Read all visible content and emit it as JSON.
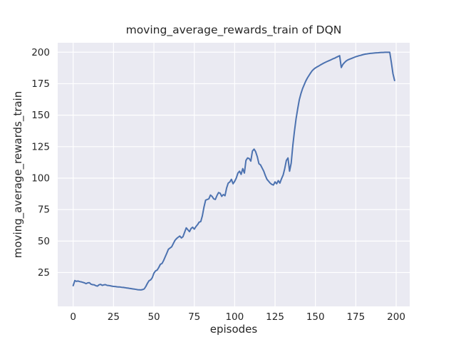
{
  "figure": {
    "background_color": "#ffffff"
  },
  "chart_data": {
    "type": "line",
    "title": "moving_average_rewards_train of DQN",
    "xlabel": "episodes",
    "ylabel": "moving_average_rewards_train",
    "x_ticks": [
      0,
      25,
      50,
      75,
      100,
      125,
      150,
      175,
      200
    ],
    "y_ticks": [
      25,
      50,
      75,
      100,
      125,
      150,
      175,
      200
    ],
    "xlim": [
      -9.6,
      208.6
    ],
    "ylim": [
      -1.9,
      207.5
    ],
    "grid": true,
    "legend_visible": false,
    "style": "seaborn-darkgrid",
    "plot_background_color": "#eaeaf2",
    "grid_color": "#ffffff",
    "line_color": "#4c72b0",
    "text_color": "#262626",
    "series": [
      {
        "name": "moving_average_rewards_train",
        "x_start": 0,
        "x_step": 1,
        "values": [
          14.6,
          18.6,
          18.0,
          18.3,
          17.8,
          17.6,
          17.2,
          16.8,
          16.2,
          16.8,
          17.0,
          15.8,
          15.4,
          15.2,
          14.6,
          14.2,
          15.3,
          15.6,
          14.8,
          15.2,
          15.4,
          14.8,
          14.7,
          14.5,
          14.2,
          14.0,
          13.9,
          13.7,
          13.6,
          13.5,
          13.3,
          13.2,
          13.0,
          12.8,
          12.6,
          12.4,
          12.2,
          12.0,
          11.8,
          11.6,
          11.4,
          11.3,
          11.2,
          11.5,
          12.0,
          14.0,
          16.5,
          18.5,
          19.2,
          21.0,
          24.5,
          26.3,
          27.0,
          29.0,
          31.5,
          32.2,
          34.5,
          37.5,
          40.5,
          43.5,
          44.5,
          45.5,
          48.0,
          50.5,
          52.0,
          53.0,
          54.0,
          52.5,
          53.5,
          57.0,
          60.5,
          59.0,
          57.5,
          60.0,
          61.0,
          59.5,
          61.5,
          63.0,
          65.0,
          65.5,
          70.0,
          77.0,
          82.5,
          83.0,
          83.5,
          86.5,
          85.5,
          83.5,
          83.0,
          86.0,
          88.5,
          88.0,
          85.5,
          87.0,
          86.0,
          92.0,
          96.0,
          97.0,
          99.0,
          95.5,
          97.5,
          100.0,
          104.0,
          105.5,
          103.0,
          107.5,
          104.0,
          114.0,
          116.0,
          115.5,
          113.5,
          121.5,
          123.0,
          121.0,
          117.0,
          111.5,
          110.5,
          108.0,
          105.5,
          102.0,
          99.0,
          97.5,
          96.0,
          95.0,
          94.5,
          97.0,
          95.5,
          98.0,
          96.0,
          99.5,
          102.5,
          107.5,
          114.0,
          116.0,
          105.5,
          112.0,
          126.0,
          137.0,
          147.0,
          155.0,
          162.0,
          167.0,
          171.0,
          174.0,
          177.0,
          179.5,
          181.5,
          183.5,
          185.3,
          186.5,
          187.5,
          188.3,
          189.0,
          189.8,
          190.5,
          191.2,
          191.9,
          192.5,
          193.0,
          193.6,
          194.2,
          194.8,
          195.3,
          196.0,
          196.6,
          197.2,
          187.8,
          190.3,
          191.8,
          193.0,
          193.8,
          194.4,
          194.9,
          195.4,
          195.9,
          196.4,
          196.8,
          197.2,
          197.5,
          197.9,
          198.2,
          198.5,
          198.7,
          198.9,
          199.1,
          199.2,
          199.3,
          199.4,
          199.5,
          199.6,
          199.7,
          199.8,
          199.8,
          199.9,
          199.9,
          199.9,
          199.9,
          192.0,
          183.0,
          177.5
        ]
      }
    ]
  }
}
